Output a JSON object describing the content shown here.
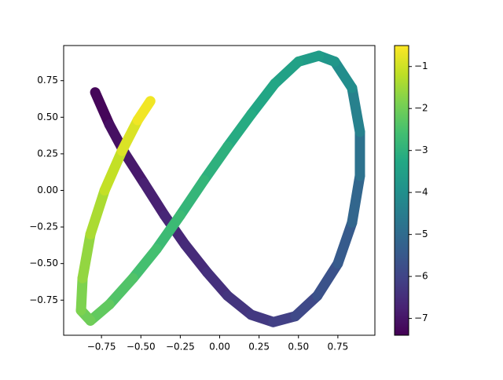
{
  "chart_data": {
    "type": "colored-line",
    "colormap": "viridis",
    "x": [
      -0.79,
      -0.7,
      -0.6,
      -0.48,
      -0.35,
      -0.22,
      -0.08,
      0.05,
      0.2,
      0.34,
      0.48,
      0.62,
      0.75,
      0.84,
      0.89,
      0.89,
      0.84,
      0.73,
      0.63,
      0.5,
      0.35,
      0.2,
      0.05,
      -0.1,
      -0.25,
      -0.4,
      -0.55,
      -0.7,
      -0.82,
      -0.88,
      -0.87,
      -0.82,
      -0.73,
      -0.62,
      -0.52,
      -0.44
    ],
    "y": [
      0.67,
      0.45,
      0.25,
      0.05,
      -0.17,
      -0.37,
      -0.56,
      -0.72,
      -0.85,
      -0.9,
      -0.86,
      -0.72,
      -0.5,
      -0.22,
      0.1,
      0.4,
      0.7,
      0.88,
      0.92,
      0.88,
      0.73,
      0.52,
      0.3,
      0.07,
      -0.17,
      -0.4,
      -0.6,
      -0.78,
      -0.89,
      -0.82,
      -0.6,
      -0.3,
      0.0,
      0.27,
      0.48,
      0.61
    ],
    "c": [
      -7.4,
      -7.2,
      -7.0,
      -6.85,
      -6.7,
      -6.6,
      -6.5,
      -6.4,
      -6.3,
      -6.2,
      -6.0,
      -5.8,
      -5.55,
      -5.3,
      -5.0,
      -4.6,
      -4.2,
      -3.9,
      -3.7,
      -3.55,
      -3.4,
      -3.25,
      -3.1,
      -2.95,
      -2.8,
      -2.65,
      -2.5,
      -2.3,
      -2.1,
      -1.95,
      -1.75,
      -1.5,
      -1.25,
      -1.0,
      -0.75,
      -0.5
    ],
    "xlim": [
      -0.99,
      0.985
    ],
    "ylim": [
      -0.99,
      0.99
    ],
    "clim": [
      -7.4,
      -0.5
    ],
    "xticks": [
      {
        "value": -0.75,
        "label": "−0.75"
      },
      {
        "value": -0.5,
        "label": "−0.50"
      },
      {
        "value": -0.25,
        "label": "−0.25"
      },
      {
        "value": 0,
        "label": "0.00"
      },
      0.25,
      {
        "value": 0.5,
        "label": "0.50"
      },
      0.75
    ],
    "yticks": [
      {
        "value": -0.75,
        "label": "−0.75"
      },
      {
        "value": -0.5,
        "label": "−0.50"
      },
      {
        "value": -0.25,
        "label": "−0.25"
      },
      {
        "value": 0,
        "label": "0.00"
      },
      0.25,
      {
        "value": 0.5,
        "label": "0.50"
      },
      0.75
    ],
    "cticks": [
      {
        "value": -7,
        "label": "−7"
      },
      {
        "value": -6,
        "label": "−6"
      },
      {
        "value": -5,
        "label": "−5"
      },
      {
        "value": -4,
        "label": "−4"
      },
      {
        "value": -3,
        "label": "−3"
      },
      {
        "value": -2,
        "label": "−2"
      },
      {
        "value": -1,
        "label": "−1"
      }
    ]
  }
}
